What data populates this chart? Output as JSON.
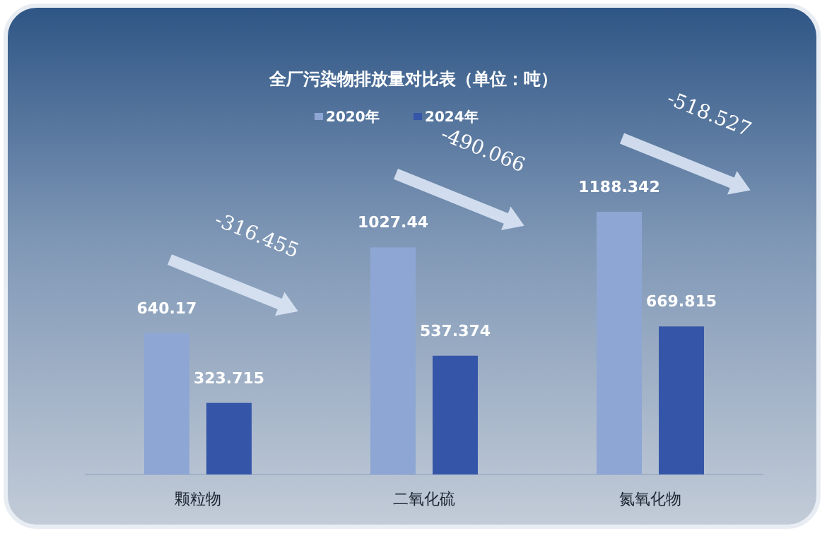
{
  "chart_data": {
    "type": "bar",
    "title": "全厂污染物排放量对比表（单位：吨）",
    "categories": [
      "颗粒物",
      "二氧化硫",
      "氮氧化物"
    ],
    "series": [
      {
        "name": "2020年",
        "color": "#8ea6d4",
        "values": [
          640.17,
          1027.44,
          1188.342
        ]
      },
      {
        "name": "2024年",
        "color": "#3556a8",
        "values": [
          323.715,
          537.374,
          669.815
        ]
      }
    ],
    "data_labels": true,
    "legend": "top",
    "annotations": [
      "-316.455",
      "-490.066",
      "-518.527"
    ]
  }
}
